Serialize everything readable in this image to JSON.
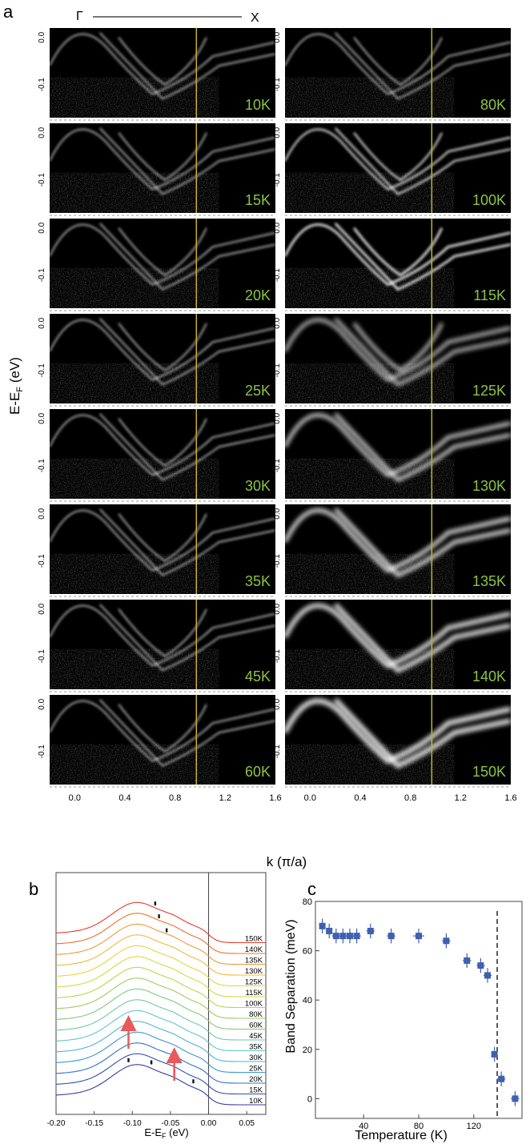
{
  "panel_letters": [
    "a",
    "b",
    "c"
  ],
  "gamma_label": "Γ",
  "x_label": "X",
  "chart_data": [
    {
      "type": "heatmap",
      "panel": "a",
      "xlabel": "k (π/a)",
      "ylabel": "E-E",
      "ylabel_sub": "F",
      "ylabel_unit": " (eV)",
      "xticks": [
        "0.0",
        "0.4",
        "0.8",
        "1.2",
        "1.6"
      ],
      "yticks": [
        "0.0",
        "-0.1"
      ],
      "xlim": [
        -0.2,
        1.6
      ],
      "ylim": [
        -0.17,
        0.02
      ],
      "cut_k": 0.97,
      "left_temperatures": [
        "10K",
        "15K",
        "20K",
        "25K",
        "30K",
        "35K",
        "45K",
        "60K"
      ],
      "right_temperatures": [
        "80K",
        "100K",
        "115K",
        "125K",
        "130K",
        "135K",
        "140K",
        "150K"
      ],
      "label_color": "#8cc63f",
      "cut_line_color": "#c8b02a"
    },
    {
      "type": "line",
      "panel": "b",
      "xlabel": "E-E",
      "xlabel_sub": "F",
      "xlabel_unit": " (eV)",
      "xlim": [
        -0.2,
        0.075
      ],
      "xticks": [
        "-0.20",
        "-0.15",
        "-0.10",
        "-0.05",
        "0.00",
        "0.05"
      ],
      "xtick_values": [
        -0.2,
        -0.15,
        -0.1,
        -0.05,
        0.0,
        0.05
      ],
      "series": [
        {
          "name": "10K",
          "color": "#3a3a99"
        },
        {
          "name": "15K",
          "color": "#2f4fb0"
        },
        {
          "name": "20K",
          "color": "#2f72c4"
        },
        {
          "name": "25K",
          "color": "#3b96d0"
        },
        {
          "name": "30K",
          "color": "#4db3d8"
        },
        {
          "name": "35K",
          "color": "#5fc6c8"
        },
        {
          "name": "45K",
          "color": "#6ec9a4"
        },
        {
          "name": "60K",
          "color": "#7fca7c"
        },
        {
          "name": "80K",
          "color": "#97cf5c"
        },
        {
          "name": "100K",
          "color": "#b7d64a"
        },
        {
          "name": "115K",
          "color": "#d4da3e"
        },
        {
          "name": "125K",
          "color": "#ead33a"
        },
        {
          "name": "130K",
          "color": "#f2b838"
        },
        {
          "name": "135K",
          "color": "#f29734"
        },
        {
          "name": "140K",
          "color": "#ee6f30"
        },
        {
          "name": "150K",
          "color": "#e33b2b"
        }
      ],
      "arrow_positions": [
        -0.105,
        -0.045
      ],
      "low_t_band_peaks": [
        -0.105,
        -0.075,
        -0.045,
        -0.02
      ],
      "high_t_markers": [
        -0.07,
        -0.065,
        -0.055
      ],
      "arrow_color": "#e85a5a"
    },
    {
      "type": "scatter",
      "panel": "c",
      "xlabel": "Temperature (K)",
      "ylabel": "Band Separation (meV)",
      "xlim": [
        5,
        155
      ],
      "ylim": [
        -8,
        80
      ],
      "xticks": [
        "40",
        "80",
        "120"
      ],
      "xtick_values": [
        40,
        80,
        120
      ],
      "yticks": [
        "0",
        "20",
        "40",
        "60",
        "80"
      ],
      "ytick_values": [
        0,
        20,
        40,
        60,
        80
      ],
      "marker_color": "#3f5fb0",
      "transition_x": 137,
      "x": [
        10,
        15,
        20,
        25,
        30,
        35,
        45,
        60,
        80,
        100,
        115,
        125,
        130,
        135,
        140,
        150
      ],
      "y": [
        70,
        68,
        66,
        66,
        66,
        66,
        68,
        66,
        66,
        64,
        56,
        54,
        50,
        18,
        8,
        0
      ],
      "xerr": [
        2,
        2,
        3,
        3,
        3,
        3,
        3,
        3,
        4,
        3,
        3,
        3,
        3,
        2,
        3,
        3
      ],
      "yerr": [
        3,
        3,
        3,
        3,
        3,
        3,
        3,
        3,
        3,
        3,
        3,
        3,
        3,
        3,
        3,
        3
      ]
    }
  ]
}
